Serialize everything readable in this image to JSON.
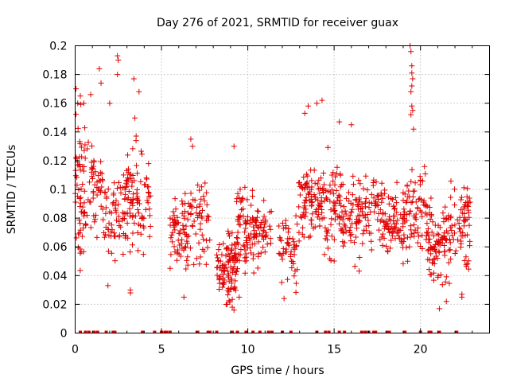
{
  "chart_data": {
    "type": "scatter",
    "title": "Day 276 of 2021, SRMTID for receiver guax",
    "xlabel": "GPS time / hours",
    "ylabel": "SRMTID / TECUs",
    "xlim": [
      0,
      24
    ],
    "ylim": [
      0,
      0.2
    ],
    "xticks": [
      0,
      5,
      10,
      15,
      20
    ],
    "xtick_labels": [
      "0",
      "5",
      "10",
      "15",
      "20"
    ],
    "yticks": [
      0,
      0.02,
      0.04,
      0.06,
      0.08,
      0.1,
      0.12,
      0.14,
      0.16,
      0.18,
      0.2
    ],
    "ytick_labels": [
      "0",
      "0.02",
      "0.04",
      "0.06",
      "0.08",
      "0.1",
      "0.12",
      "0.14",
      "0.16",
      "0.18",
      "0.2"
    ],
    "grid": true,
    "marker": "plus",
    "color": "#e00000",
    "series": [
      {
        "name": "SRMTID",
        "clusters": [
          {
            "x": [
              0.0,
              0.6
            ],
            "y": [
              0.03,
              0.17
            ],
            "n": 60
          },
          {
            "x": [
              0.6,
              1.6
            ],
            "y": [
              0.06,
              0.15
            ],
            "n": 50
          },
          {
            "x": [
              1.6,
              2.4
            ],
            "y": [
              0.04,
              0.12
            ],
            "n": 40
          },
          {
            "x": [
              2.4,
              3.6
            ],
            "y": [
              0.03,
              0.16
            ],
            "n": 80
          },
          {
            "x": [
              3.6,
              4.4
            ],
            "y": [
              0.04,
              0.14
            ],
            "n": 40
          },
          {
            "x": [
              5.5,
              6.5
            ],
            "y": [
              0.03,
              0.11
            ],
            "n": 60
          },
          {
            "x": [
              6.5,
              7.8
            ],
            "y": [
              0.03,
              0.12
            ],
            "n": 60
          },
          {
            "x": [
              8.2,
              9.3
            ],
            "y": [
              0.015,
              0.08
            ],
            "n": 100
          },
          {
            "x": [
              9.3,
              10.6
            ],
            "y": [
              0.03,
              0.11
            ],
            "n": 100
          },
          {
            "x": [
              10.6,
              11.4
            ],
            "y": [
              0.04,
              0.1
            ],
            "n": 35
          },
          {
            "x": [
              11.8,
              12.9
            ],
            "y": [
              0.025,
              0.09
            ],
            "n": 50
          },
          {
            "x": [
              12.9,
              14.3
            ],
            "y": [
              0.05,
              0.13
            ],
            "n": 90
          },
          {
            "x": [
              14.3,
              15.4
            ],
            "y": [
              0.04,
              0.14
            ],
            "n": 70
          },
          {
            "x": [
              15.4,
              16.6
            ],
            "y": [
              0.04,
              0.12
            ],
            "n": 70
          },
          {
            "x": [
              16.6,
              17.8
            ],
            "y": [
              0.05,
              0.12
            ],
            "n": 60
          },
          {
            "x": [
              17.8,
              19.2
            ],
            "y": [
              0.045,
              0.11
            ],
            "n": 90
          },
          {
            "x": [
              19.2,
              20.4
            ],
            "y": [
              0.04,
              0.13
            ],
            "n": 70
          },
          {
            "x": [
              20.4,
              21.7
            ],
            "y": [
              0.02,
              0.1
            ],
            "n": 90
          },
          {
            "x": [
              21.7,
              22.9
            ],
            "y": [
              0.03,
              0.12
            ],
            "n": 70
          }
        ],
        "points": [
          {
            "x": 0.05,
            "y": 0.17
          },
          {
            "x": 0.15,
            "y": 0.16
          },
          {
            "x": 0.3,
            "y": 0.165
          },
          {
            "x": 0.5,
            "y": 0.16
          },
          {
            "x": 0.9,
            "y": 0.166
          },
          {
            "x": 1.4,
            "y": 0.184
          },
          {
            "x": 1.5,
            "y": 0.174
          },
          {
            "x": 2.45,
            "y": 0.193
          },
          {
            "x": 2.5,
            "y": 0.19
          },
          {
            "x": 2.45,
            "y": 0.18
          },
          {
            "x": 3.4,
            "y": 0.177
          },
          {
            "x": 3.7,
            "y": 0.168
          },
          {
            "x": 2.0,
            "y": 0.16
          },
          {
            "x": 6.7,
            "y": 0.135
          },
          {
            "x": 6.8,
            "y": 0.13
          },
          {
            "x": 9.2,
            "y": 0.13
          },
          {
            "x": 9.1,
            "y": 0.018
          },
          {
            "x": 9.2,
            "y": 0.016
          },
          {
            "x": 8.8,
            "y": 0.02
          },
          {
            "x": 9.5,
            "y": 0.025
          },
          {
            "x": 14.0,
            "y": 0.16
          },
          {
            "x": 14.3,
            "y": 0.162
          },
          {
            "x": 13.3,
            "y": 0.153
          },
          {
            "x": 13.5,
            "y": 0.158
          },
          {
            "x": 16.0,
            "y": 0.145
          },
          {
            "x": 15.3,
            "y": 0.147
          },
          {
            "x": 19.4,
            "y": 0.2
          },
          {
            "x": 19.45,
            "y": 0.196
          },
          {
            "x": 19.5,
            "y": 0.186
          },
          {
            "x": 19.5,
            "y": 0.181
          },
          {
            "x": 19.55,
            "y": 0.177
          },
          {
            "x": 19.5,
            "y": 0.172
          },
          {
            "x": 19.45,
            "y": 0.168
          },
          {
            "x": 19.5,
            "y": 0.158
          },
          {
            "x": 19.55,
            "y": 0.155
          },
          {
            "x": 19.45,
            "y": 0.152
          },
          {
            "x": 19.6,
            "y": 0.142
          },
          {
            "x": 21.1,
            "y": 0.017
          },
          {
            "x": 21.5,
            "y": 0.022
          },
          {
            "x": 22.4,
            "y": 0.025
          },
          {
            "x": 22.4,
            "y": 0.027
          },
          {
            "x": 12.1,
            "y": 0.024
          },
          {
            "x": 5.5,
            "y": 0.045
          },
          {
            "x": 6.3,
            "y": 0.025
          },
          {
            "x": 1.9,
            "y": 0.033
          },
          {
            "x": 3.2,
            "y": 0.03
          },
          {
            "x": 3.2,
            "y": 0.028
          }
        ],
        "zero_values_x": [
          0.3,
          0.6,
          0.8,
          1.1,
          1.3,
          1.8,
          2.2,
          2.3,
          3.9,
          4.6,
          5.0,
          5.2,
          5.3,
          5.5,
          7.1,
          7.7,
          7.8,
          8.2,
          9.1,
          9.4,
          9.9,
          10.3,
          10.7,
          11.2,
          11.4,
          12.0,
          12.5,
          14.0,
          14.5,
          14.7,
          15.3,
          15.6,
          16.6,
          16.8,
          17.0,
          17.3,
          17.4,
          18.1,
          18.2,
          19.1,
          20.0,
          20.5,
          20.6,
          21.1,
          22.1
        ]
      }
    ]
  }
}
